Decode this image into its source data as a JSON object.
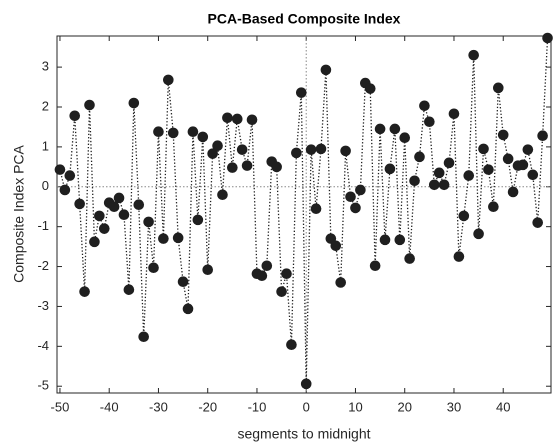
{
  "chart_data": {
    "type": "line",
    "title": "PCA-Based Composite Index",
    "x_label": "segments to midnight",
    "y_label": "Composite Index PCA",
    "x": [
      -50,
      -49,
      -48,
      -47,
      -46,
      -45,
      -44,
      -43,
      -42,
      -41,
      -40,
      -39,
      -38,
      -37,
      -36,
      -35,
      -34,
      -33,
      -32,
      -31,
      -30,
      -29,
      -28,
      -27,
      -26,
      -25,
      -24,
      -23,
      -22,
      -21,
      -20,
      -19,
      -18,
      -17,
      -16,
      -15,
      -14,
      -13,
      -12,
      -11,
      -10,
      -9,
      -8,
      -7,
      -6,
      -5,
      -4,
      -3,
      -2,
      -1,
      0,
      1,
      2,
      3,
      4,
      5,
      6,
      7,
      8,
      9,
      10,
      11,
      12,
      13,
      14,
      15,
      16,
      17,
      18,
      19,
      20,
      21,
      22,
      23,
      24,
      25,
      26,
      27,
      28,
      29,
      30,
      31,
      32,
      33,
      34,
      35,
      36,
      37,
      38,
      39,
      40,
      41,
      42,
      43,
      44,
      45,
      46,
      47,
      48,
      49
    ],
    "values": [
      0.43,
      -0.08,
      0.28,
      1.78,
      -0.43,
      -2.63,
      2.05,
      -1.38,
      -0.73,
      -1.05,
      -0.4,
      -0.5,
      -0.28,
      -0.7,
      -2.58,
      2.1,
      -0.45,
      -3.76,
      -0.88,
      -2.03,
      1.38,
      -1.3,
      2.68,
      1.35,
      -1.28,
      -2.38,
      -3.06,
      1.38,
      -0.83,
      1.25,
      -2.08,
      0.83,
      1.03,
      -0.2,
      1.73,
      0.48,
      1.7,
      0.93,
      0.53,
      1.68,
      -2.18,
      -2.23,
      -1.98,
      0.63,
      0.5,
      -2.63,
      -2.18,
      -3.96,
      0.85,
      2.36,
      -4.94,
      0.93,
      -0.55,
      0.95,
      2.93,
      -1.3,
      -1.48,
      -2.4,
      0.9,
      -0.25,
      -0.53,
      -0.08,
      2.6,
      2.46,
      -1.98,
      1.45,
      -1.33,
      0.45,
      1.45,
      -1.33,
      1.23,
      -1.8,
      0.15,
      0.75,
      2.03,
      1.63,
      0.05,
      0.35,
      0.05,
      0.6,
      1.83,
      -1.75,
      -0.73,
      0.28,
      3.3,
      -1.18,
      0.95,
      0.43,
      -0.5,
      2.48,
      1.3,
      0.7,
      -0.13,
      0.53,
      0.55,
      0.93,
      0.3,
      -0.9,
      1.28,
      3.73
    ],
    "color": "#1f1f1f",
    "line_style": "dotted",
    "xlim": [
      -50.6,
      49.7
    ],
    "ylim": [
      -5.17,
      3.78
    ],
    "xticks": [
      -50,
      -40,
      -30,
      -20,
      -10,
      0,
      10,
      20,
      30,
      40
    ],
    "yticks": [
      -5,
      -4,
      -3,
      -2,
      -1,
      0,
      1,
      2,
      3
    ],
    "ref_x": 0,
    "ref_y": 0
  }
}
